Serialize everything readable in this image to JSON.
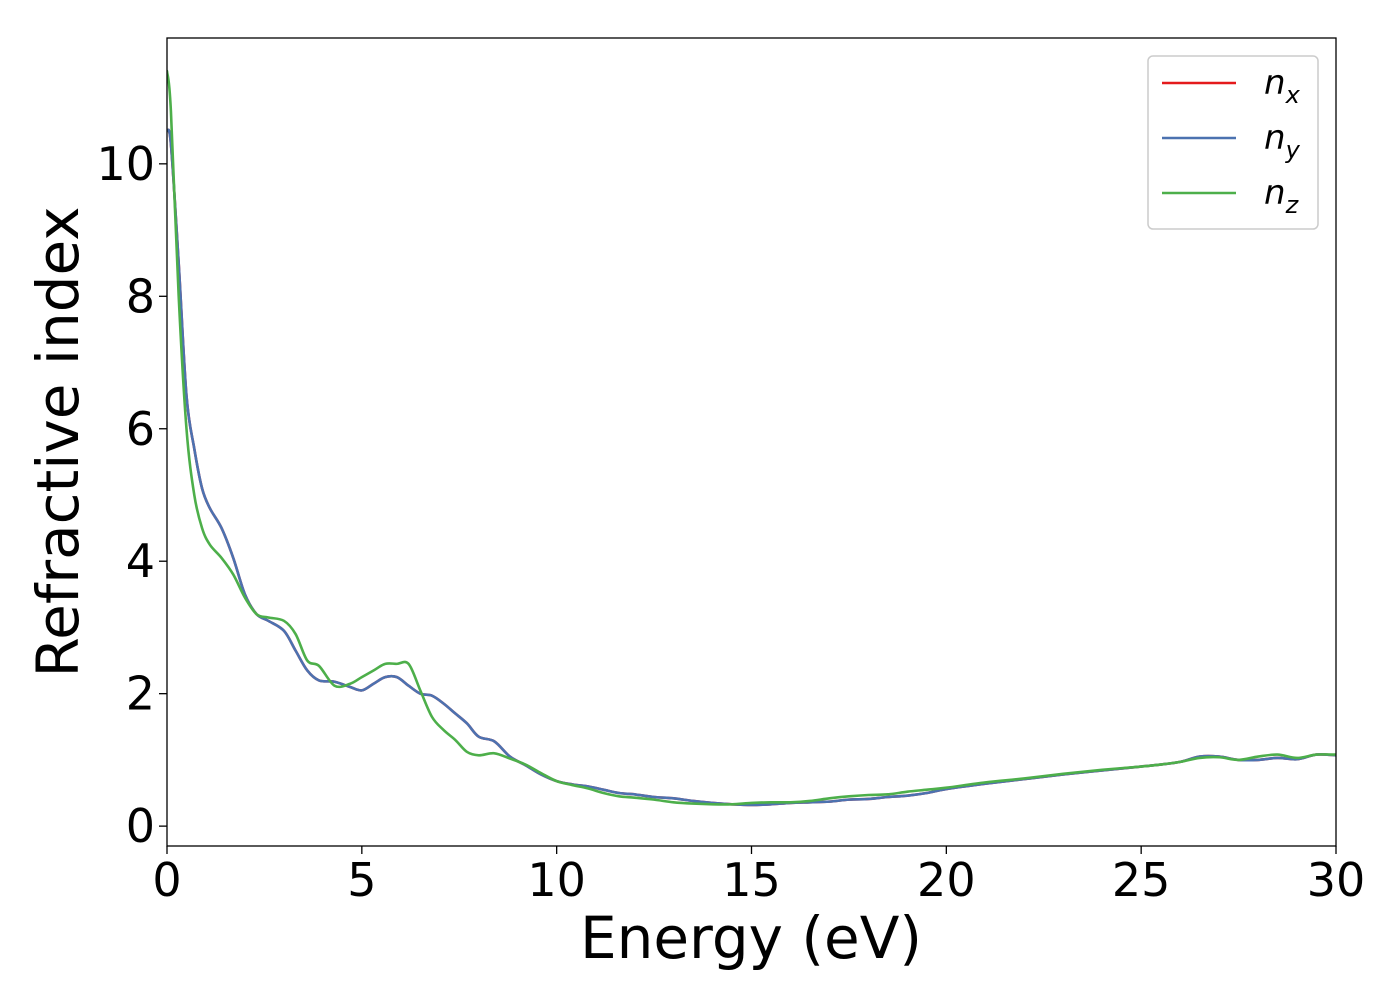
{
  "chart_data": {
    "type": "line",
    "title": "",
    "xlabel": "Energy (eV)",
    "ylabel": "Refractive index",
    "xlim": [
      0,
      30
    ],
    "ylim": [
      -0.3,
      11.9
    ],
    "xticks": [
      0,
      5,
      10,
      15,
      20,
      25,
      30
    ],
    "yticks": [
      0,
      2,
      4,
      6,
      8,
      10
    ],
    "grid": false,
    "legend_position": "top-right",
    "series": [
      {
        "name": "n_x",
        "label_base": "n",
        "label_sub": "x",
        "color": "#e41a1c",
        "x": [
          0.0,
          0.1,
          0.3,
          0.5,
          0.7,
          0.9,
          1.1,
          1.4,
          1.7,
          2.0,
          2.3,
          2.6,
          3.0,
          3.3,
          3.6,
          3.9,
          4.3,
          4.7,
          5.0,
          5.3,
          5.6,
          5.9,
          6.2,
          6.5,
          6.8,
          7.1,
          7.4,
          7.7,
          8.0,
          8.4,
          8.8,
          9.2,
          9.6,
          10.0,
          10.4,
          10.8,
          11.2,
          11.6,
          12.0,
          12.5,
          13.0,
          13.5,
          14.0,
          14.5,
          15.0,
          15.5,
          16.0,
          16.5,
          17.0,
          17.5,
          18.0,
          18.5,
          19.0,
          19.5,
          20.0,
          21.0,
          22.0,
          23.0,
          24.0,
          25.0,
          25.5,
          26.0,
          26.5,
          27.0,
          27.5,
          28.0,
          28.5,
          29.0,
          29.5,
          30.0
        ],
        "values": [
          10.5,
          10.3,
          8.5,
          6.5,
          5.7,
          5.1,
          4.8,
          4.5,
          4.05,
          3.5,
          3.2,
          3.1,
          2.95,
          2.65,
          2.35,
          2.2,
          2.18,
          2.1,
          2.05,
          2.15,
          2.25,
          2.25,
          2.12,
          2.0,
          1.97,
          1.85,
          1.7,
          1.55,
          1.35,
          1.28,
          1.05,
          0.92,
          0.78,
          0.68,
          0.63,
          0.6,
          0.55,
          0.5,
          0.48,
          0.44,
          0.42,
          0.38,
          0.35,
          0.33,
          0.32,
          0.33,
          0.35,
          0.36,
          0.37,
          0.4,
          0.41,
          0.44,
          0.46,
          0.5,
          0.56,
          0.64,
          0.71,
          0.78,
          0.84,
          0.9,
          0.93,
          0.97,
          1.05,
          1.05,
          1.0,
          1.0,
          1.03,
          1.01,
          1.08,
          1.07
        ]
      },
      {
        "name": "n_y",
        "label_base": "n",
        "label_sub": "y",
        "color": "#4c72b0",
        "x": [
          0.0,
          0.1,
          0.3,
          0.5,
          0.7,
          0.9,
          1.1,
          1.4,
          1.7,
          2.0,
          2.3,
          2.6,
          3.0,
          3.3,
          3.6,
          3.9,
          4.3,
          4.7,
          5.0,
          5.3,
          5.6,
          5.9,
          6.2,
          6.5,
          6.8,
          7.1,
          7.4,
          7.7,
          8.0,
          8.4,
          8.8,
          9.2,
          9.6,
          10.0,
          10.4,
          10.8,
          11.2,
          11.6,
          12.0,
          12.5,
          13.0,
          13.5,
          14.0,
          14.5,
          15.0,
          15.5,
          16.0,
          16.5,
          17.0,
          17.5,
          18.0,
          18.5,
          19.0,
          19.5,
          20.0,
          21.0,
          22.0,
          23.0,
          24.0,
          25.0,
          25.5,
          26.0,
          26.5,
          27.0,
          27.5,
          28.0,
          28.5,
          29.0,
          29.5,
          30.0
        ],
        "values": [
          10.5,
          10.3,
          8.5,
          6.5,
          5.7,
          5.1,
          4.8,
          4.5,
          4.05,
          3.5,
          3.2,
          3.1,
          2.95,
          2.65,
          2.35,
          2.2,
          2.18,
          2.1,
          2.05,
          2.15,
          2.25,
          2.25,
          2.12,
          2.0,
          1.97,
          1.85,
          1.7,
          1.55,
          1.35,
          1.28,
          1.05,
          0.92,
          0.78,
          0.68,
          0.63,
          0.6,
          0.55,
          0.5,
          0.48,
          0.44,
          0.42,
          0.38,
          0.35,
          0.33,
          0.32,
          0.33,
          0.35,
          0.36,
          0.37,
          0.4,
          0.41,
          0.44,
          0.46,
          0.5,
          0.56,
          0.64,
          0.71,
          0.78,
          0.84,
          0.9,
          0.93,
          0.97,
          1.05,
          1.05,
          1.0,
          1.0,
          1.03,
          1.01,
          1.08,
          1.07
        ]
      },
      {
        "name": "n_z",
        "label_base": "n",
        "label_sub": "z",
        "color": "#4daf4a",
        "x": [
          0.0,
          0.1,
          0.3,
          0.5,
          0.7,
          0.9,
          1.1,
          1.4,
          1.7,
          2.0,
          2.3,
          2.6,
          3.0,
          3.3,
          3.6,
          3.9,
          4.3,
          4.7,
          5.0,
          5.3,
          5.6,
          5.9,
          6.2,
          6.5,
          6.8,
          7.1,
          7.4,
          7.7,
          8.0,
          8.4,
          8.8,
          9.2,
          9.6,
          10.0,
          10.4,
          10.8,
          11.2,
          11.6,
          12.0,
          12.5,
          13.0,
          13.5,
          14.0,
          14.5,
          15.0,
          15.5,
          16.0,
          16.5,
          17.0,
          17.5,
          18.0,
          18.5,
          19.0,
          19.5,
          20.0,
          21.0,
          22.0,
          23.0,
          24.0,
          25.0,
          25.5,
          26.0,
          26.5,
          27.0,
          27.5,
          28.0,
          28.5,
          29.0,
          29.5,
          30.0
        ],
        "values": [
          11.4,
          10.8,
          8.0,
          6.0,
          5.0,
          4.5,
          4.25,
          4.05,
          3.8,
          3.45,
          3.2,
          3.15,
          3.1,
          2.9,
          2.5,
          2.42,
          2.12,
          2.15,
          2.25,
          2.35,
          2.45,
          2.45,
          2.45,
          2.05,
          1.65,
          1.45,
          1.3,
          1.12,
          1.07,
          1.1,
          1.02,
          0.93,
          0.8,
          0.68,
          0.62,
          0.57,
          0.5,
          0.45,
          0.43,
          0.4,
          0.36,
          0.34,
          0.33,
          0.33,
          0.35,
          0.36,
          0.36,
          0.38,
          0.42,
          0.45,
          0.47,
          0.48,
          0.52,
          0.55,
          0.58,
          0.66,
          0.72,
          0.79,
          0.85,
          0.9,
          0.93,
          0.97,
          1.03,
          1.04,
          1.0,
          1.05,
          1.08,
          1.03,
          1.08,
          1.08
        ]
      }
    ]
  }
}
